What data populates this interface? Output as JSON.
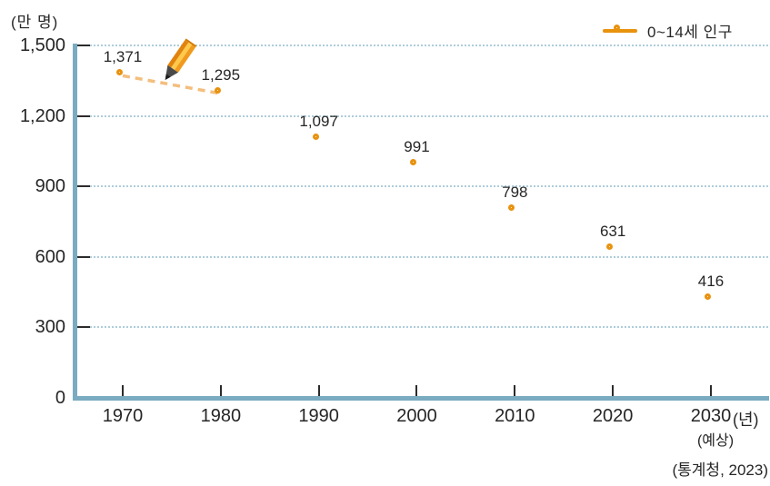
{
  "unit_label": "(만 명)",
  "legend": {
    "label": "0~14세 인구",
    "marker_color": "#E8920E"
  },
  "x_axis_suffix": "(년)",
  "x_axis_note": "(예상)",
  "source": "(통계청, 2023)",
  "colors": {
    "marker": "#E8920E",
    "dashed_line": "#F4BE7D",
    "axis": "#7AABC1",
    "gridline": "#AECDDB",
    "text": "#262626",
    "pencil_body_light": "#FFC94E",
    "pencil_body_dark": "#E1830F",
    "pencil_body_mid": "#F09A1E",
    "pencil_tip": "#4a4a4a"
  },
  "chart_data": {
    "type": "scatter",
    "title": "0~14세 인구 (0-14 age population)",
    "categories": [
      "1970",
      "1980",
      "1990",
      "2000",
      "2010",
      "2020",
      "2030"
    ],
    "values": [
      1371,
      1295,
      1097,
      991,
      798,
      631,
      416
    ],
    "value_labels": [
      "1,371",
      "1,295",
      "1,097",
      "991",
      "798",
      "631",
      "416"
    ],
    "xlabel": "(년)",
    "ylabel": "(만 명)",
    "ylim": [
      0,
      1500
    ],
    "yticks": [
      0,
      300,
      600,
      900,
      1200,
      1500
    ],
    "ytick_labels": [
      "0",
      "300",
      "600",
      "900",
      "1,200",
      "1,500"
    ],
    "grid": "dotted-horizontal",
    "legend_position": "top-right",
    "annotation": "pencil icon drawing a dashed trend segment between the 1970 and 1980 points",
    "dashed_segment_between": [
      "1970",
      "1980"
    ]
  }
}
